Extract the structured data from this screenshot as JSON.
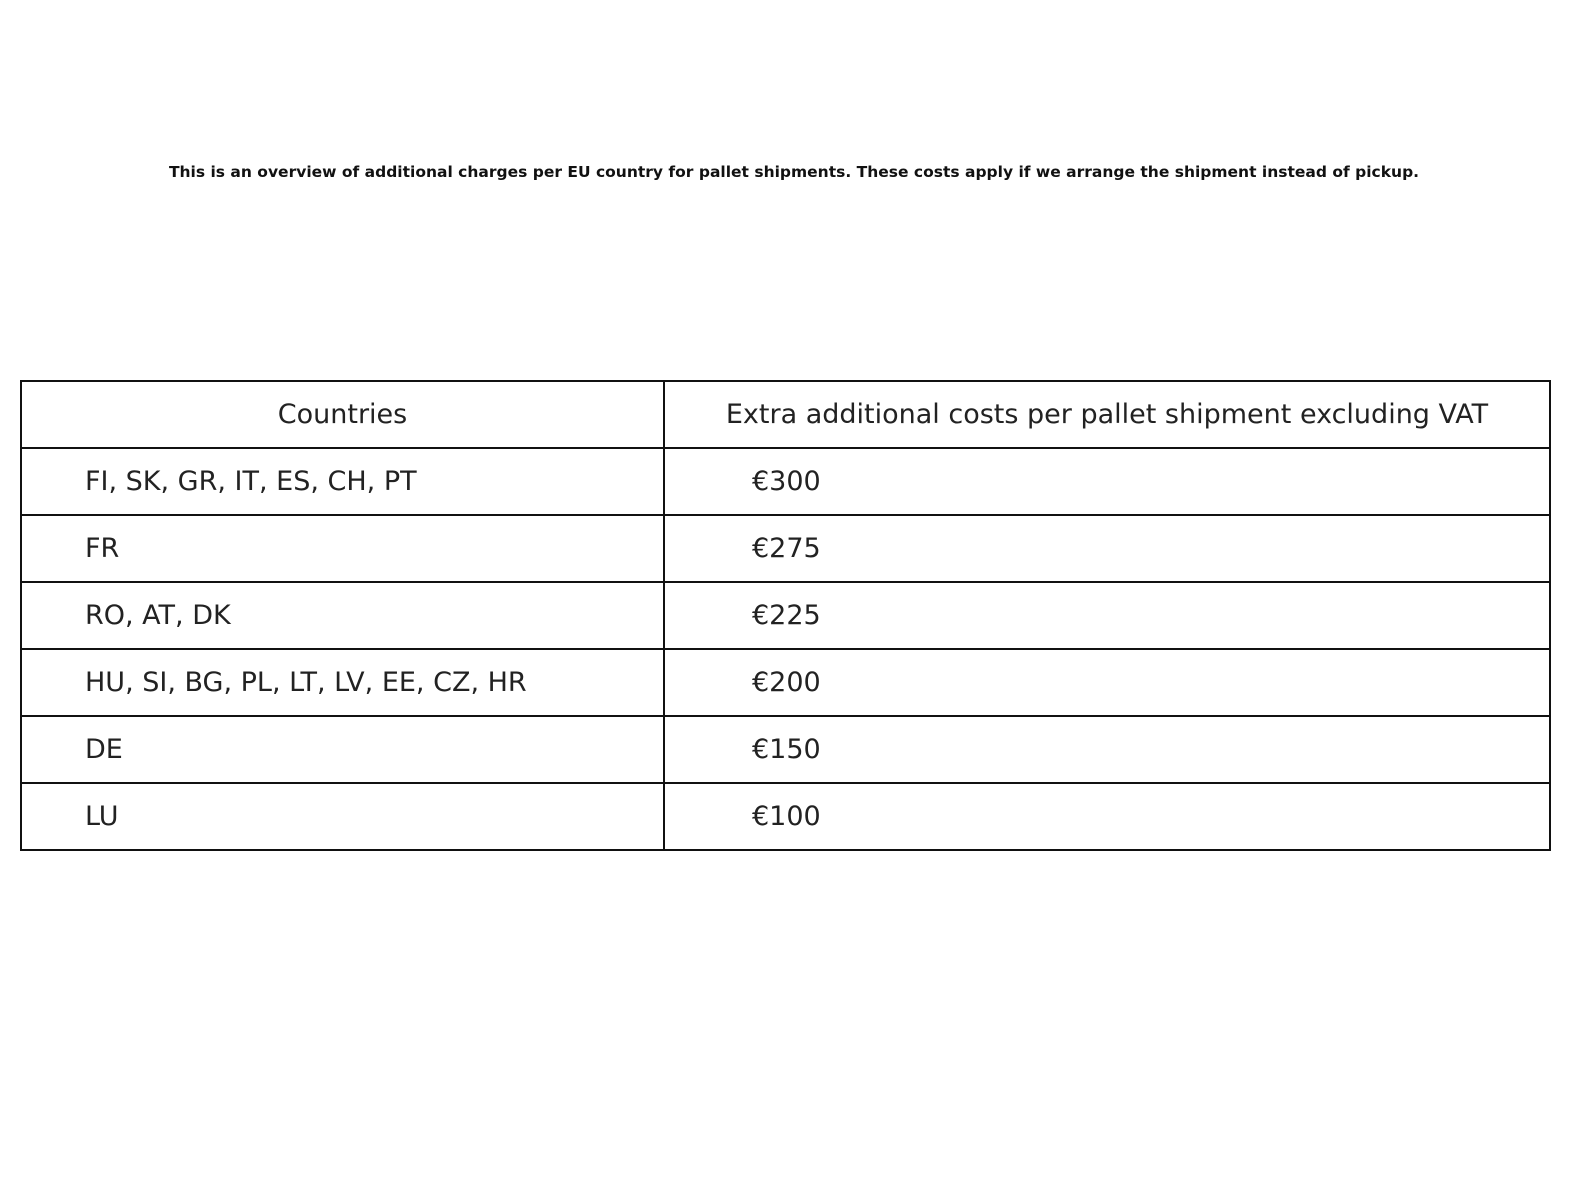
{
  "intro": "This is an overview of additional charges per EU country for pallet shipments. These costs apply if we arrange the shipment instead of pickup.",
  "table": {
    "headers": [
      "Countries",
      "Extra additional costs per pallet shipment excluding VAT"
    ],
    "rows": [
      {
        "countries": "FI, SK, GR, IT, ES, CH, PT",
        "cost": "€300"
      },
      {
        "countries": "FR",
        "cost": "€275"
      },
      {
        "countries": "RO, AT, DK",
        "cost": "€225"
      },
      {
        "countries": "HU, SI, BG, PL, LT, LV, EE, CZ, HR",
        "cost": "€200"
      },
      {
        "countries": "DE",
        "cost": "€150"
      },
      {
        "countries": "LU",
        "cost": "€100"
      }
    ]
  }
}
